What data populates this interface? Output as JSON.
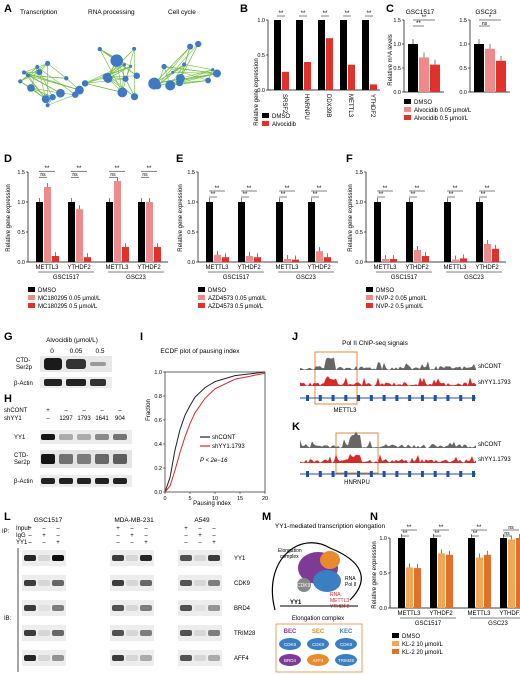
{
  "panels": {
    "A": {
      "letter": "A",
      "titles": [
        "Transcription",
        "RNA processing",
        "Cell cycle"
      ]
    },
    "B": {
      "letter": "B",
      "ylabel": "Relative gene expression",
      "categories": [
        "SRSF2",
        "HNRNPU",
        "DDX39B",
        "METTL3",
        "YTHDF2"
      ],
      "legend": [
        "DMSO",
        "Alvocidib"
      ],
      "sig": [
        "**",
        "**",
        "**",
        "**",
        "**"
      ]
    },
    "C": {
      "letter": "C",
      "titles": [
        "GSC1517",
        "GSC23"
      ],
      "ylabel": "Relative m⁶A levels",
      "legend": [
        "DMSO",
        "Alvocidib 0.05 μmol/L",
        "Alvocidib 0.5 μmol/L"
      ],
      "sig_gsc1517": [
        "**",
        "**"
      ],
      "sig_gsc23": [
        "*",
        "ns"
      ]
    },
    "D": {
      "letter": "D",
      "ylabel": "Relative gene expression",
      "legend": [
        "DMSO",
        "MC180295 0.05 μmol/L",
        "MC180295 0.5 μmol/L"
      ]
    },
    "E": {
      "letter": "E",
      "ylabel": "Relative gene expression",
      "legend": [
        "DMSO",
        "AZD4573 0.05 μmol/L",
        "AZD4573 0.5 μmol/L"
      ]
    },
    "F": {
      "letter": "F",
      "ylabel": "Relative gene expression",
      "legend": [
        "DMSO",
        "NVP-2 0.05 μmol/L",
        "NVP-2 0.5 μmol/L"
      ]
    },
    "G": {
      "letter": "G",
      "title": "Alvocidib (μmol/L)",
      "doses": [
        "0",
        "0.05",
        "0.5"
      ],
      "rows": [
        "CTD-\nSer2p",
        "β-Actin"
      ]
    },
    "H": {
      "letter": "H",
      "rowlabels": [
        "shCONT",
        "shYY1"
      ],
      "shCONT": [
        "+",
        "–",
        "–",
        "–",
        "–"
      ],
      "shYY1": [
        "–",
        "1297",
        "1793",
        "1641",
        "904"
      ],
      "rows": [
        "YY1",
        "CTD-",
        "Ser2p",
        "β-Actin"
      ]
    },
    "I": {
      "letter": "I",
      "title": "ECDF plot of pausing index",
      "xlabel": "Pausing index",
      "ylabel": "Fraction",
      "legend": [
        "shCONT",
        "shYY1.1793"
      ],
      "pval": "P < 2e−16",
      "xticks": [
        "0",
        "5",
        "10",
        "15",
        "20"
      ],
      "yticks": [
        "0.0",
        "0.2",
        "0.4",
        "0.6",
        "0.8",
        "1.0"
      ]
    },
    "J": {
      "letter": "J",
      "title": "Pol II ChIP-seq signals",
      "tracks": [
        "shCONT",
        "shYY1.1793"
      ],
      "gene": "METTL3"
    },
    "K": {
      "letter": "K",
      "tracks": [
        "shCONT",
        "shYY1.1793"
      ],
      "gene": "HNRNPU"
    },
    "L": {
      "letter": "L",
      "cells": [
        "GSC1517",
        "MDA-MB-231",
        "A549"
      ],
      "ip_rows": [
        "Input",
        "IgG",
        "YY1"
      ],
      "ip": "IP:",
      "ib": "IB:",
      "blots": [
        "YY1",
        "CDK9",
        "BRD4",
        "TRIM28",
        "AFF4"
      ],
      "input": [
        "+",
        "–",
        "–"
      ],
      "igg": [
        "–",
        "+",
        "–"
      ],
      "yy1": [
        "–",
        "–",
        "+"
      ]
    },
    "M": {
      "letter": "M",
      "title": "YY1-mediated transcription elongation",
      "complex_label": "Elongation complex",
      "subtitle": "Elongation complex",
      "polii": "RNA\nPol II",
      "yy1": "YY1",
      "cdk9": "CDK9",
      "rna": "RNA: METTL3 YTHDF2",
      "types": [
        "BEC",
        "SEC",
        "KEC"
      ],
      "bec": [
        "CDK9",
        "BRD4"
      ],
      "sec": [
        "CDK9",
        "AFF4"
      ],
      "kec": [
        "CDK9",
        "TRIM28"
      ]
    },
    "N": {
      "letter": "N",
      "ylabel": "Relative gene expression",
      "legend": [
        "DMSO",
        "KL-2 10 μmol/L",
        "KL-2 20 μmol/L"
      ]
    }
  },
  "chart_data": [
    {
      "type": "bar",
      "panel": "B",
      "categories": [
        "SRSF2",
        "HNRNPU",
        "DDX39B",
        "METTL3",
        "YTHDF2"
      ],
      "ylabel": "Relative gene expression",
      "ylim": [
        0,
        1.0
      ],
      "series": [
        {
          "name": "DMSO",
          "values": [
            1,
            1,
            1,
            1,
            1
          ],
          "color": "#000000"
        },
        {
          "name": "Alvocidib",
          "values": [
            0.26,
            0.4,
            0.74,
            0.36,
            0.08
          ],
          "color": "#e0312a"
        }
      ]
    },
    {
      "type": "bar",
      "panel": "C-GSC1517",
      "ylabel": "Relative m⁶A levels",
      "ylim": [
        0,
        1.5
      ],
      "categories": [
        "GSC1517"
      ],
      "series": [
        {
          "name": "DMSO",
          "values": [
            1.0
          ]
        },
        {
          "name": "Alvocidib 0.05 μmol/L",
          "values": [
            0.72
          ]
        },
        {
          "name": "Alvocidib 0.5 μmol/L",
          "values": [
            0.57
          ]
        }
      ]
    },
    {
      "type": "bar",
      "panel": "C-GSC23",
      "ylim": [
        0,
        1.5
      ],
      "categories": [
        "GSC23"
      ],
      "series": [
        {
          "name": "DMSO",
          "values": [
            1.0
          ]
        },
        {
          "name": "Alvocidib 0.05 μmol/L",
          "values": [
            0.9
          ]
        },
        {
          "name": "Alvocidib 0.5 μmol/L",
          "values": [
            0.65
          ]
        }
      ]
    },
    {
      "type": "bar",
      "panel": "D",
      "ylim": [
        0,
        1.5
      ],
      "categories": [
        "METTL3",
        "YTHDF2",
        "METTL3",
        "YTHDF2"
      ],
      "groups": [
        "GSC1517",
        "GSC23"
      ],
      "series": [
        {
          "name": "DMSO",
          "values": [
            1.0,
            1.0,
            1.0,
            1.0
          ]
        },
        {
          "name": "MC180295 0.05 μmol/L",
          "values": [
            1.25,
            0.88,
            1.35,
            1.0
          ]
        },
        {
          "name": "MC180295 0.5 μmol/L",
          "values": [
            0.1,
            0.08,
            0.25,
            0.25
          ]
        }
      ]
    },
    {
      "type": "bar",
      "panel": "E",
      "ylim": [
        0,
        1.5
      ],
      "categories": [
        "METTL3",
        "YTHDF2",
        "METTL3",
        "YTHDF2"
      ],
      "groups": [
        "GSC1517",
        "GSC23"
      ],
      "series": [
        {
          "name": "DMSO",
          "values": [
            1.0,
            1.0,
            1.0,
            1.0
          ]
        },
        {
          "name": "AZD4573 0.05 μmol/L",
          "values": [
            0.12,
            0.1,
            0.05,
            0.18
          ]
        },
        {
          "name": "AZD4573 0.5 μmol/L",
          "values": [
            0.08,
            0.08,
            0.04,
            0.08
          ]
        }
      ]
    },
    {
      "type": "bar",
      "panel": "F",
      "ylim": [
        0,
        1.5
      ],
      "categories": [
        "METTL3",
        "YTHDF2",
        "METTL3",
        "YTHDF2"
      ],
      "groups": [
        "GSC1517",
        "GSC23"
      ],
      "series": [
        {
          "name": "DMSO",
          "values": [
            1.0,
            1.0,
            1.0,
            1.0
          ]
        },
        {
          "name": "NVP-2 0.05 μmol/L",
          "values": [
            0.05,
            0.2,
            0.04,
            0.3
          ]
        },
        {
          "name": "NVP-2 0.5 μmol/L",
          "values": [
            0.05,
            0.1,
            0.06,
            0.22
          ]
        }
      ]
    },
    {
      "type": "line",
      "panel": "I",
      "xlabel": "Pausing index",
      "ylabel": "Fraction",
      "xlim": [
        0,
        20
      ],
      "ylim": [
        0,
        1.0
      ],
      "series": [
        {
          "name": "shCONT",
          "color": "#222222",
          "x": [
            0,
            1,
            2,
            3,
            4,
            5,
            6,
            8,
            10,
            14,
            20
          ],
          "y": [
            0,
            0.12,
            0.35,
            0.52,
            0.64,
            0.72,
            0.79,
            0.87,
            0.92,
            0.97,
            1.0
          ]
        },
        {
          "name": "shYY1.1793",
          "color": "#d62a2a",
          "x": [
            0,
            1,
            2,
            3,
            4,
            5,
            6,
            8,
            10,
            14,
            20
          ],
          "y": [
            0,
            0.05,
            0.18,
            0.33,
            0.46,
            0.57,
            0.66,
            0.78,
            0.86,
            0.94,
            0.99
          ]
        }
      ]
    },
    {
      "type": "bar",
      "panel": "N",
      "ylim": [
        0,
        1.0
      ],
      "categories": [
        "METTL3",
        "YTHDF2",
        "METTL3",
        "YTHDF2"
      ],
      "groups": [
        "GSC1517",
        "GSC23"
      ],
      "series": [
        {
          "name": "DMSO",
          "values": [
            1.0,
            1.0,
            1.0,
            1.0
          ]
        },
        {
          "name": "KL-2 10 μmol/L",
          "values": [
            0.58,
            0.78,
            0.72,
            0.98
          ]
        },
        {
          "name": "KL-2 20 μmol/L",
          "values": [
            0.57,
            0.76,
            0.76,
            1.02
          ]
        }
      ]
    }
  ]
}
